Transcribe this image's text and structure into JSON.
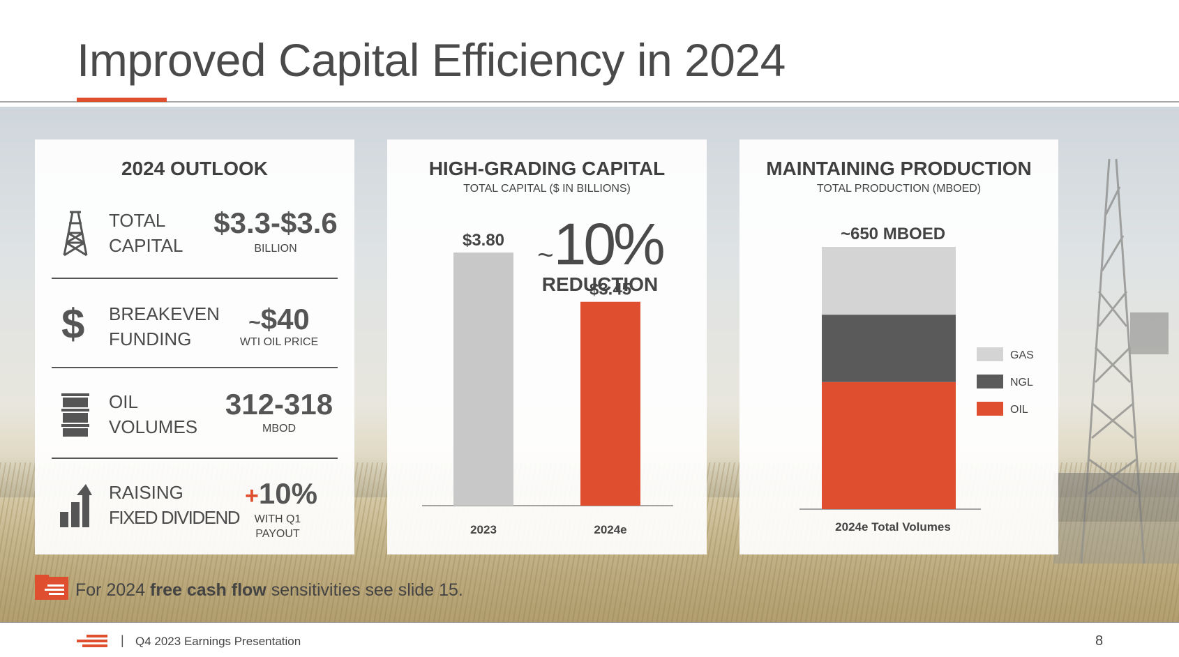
{
  "header": {
    "title": "Improved Capital Efficiency in 2024"
  },
  "outlook": {
    "heading": "2024 OUTLOOK",
    "rows": [
      {
        "label1": "TOTAL",
        "label2": "CAPITAL",
        "value": "$3.3-$3.6",
        "unit": "BILLION",
        "icon": "oil-derrick-icon"
      },
      {
        "label1": "BREAKEVEN",
        "label2": "FUNDING",
        "tilde": "~",
        "value": "$40",
        "unit": "WTI OIL PRICE",
        "icon": "dollar-icon"
      },
      {
        "label1": "OIL",
        "label2": "VOLUMES",
        "value": "312-318",
        "unit": "MBOD",
        "icon": "oil-barrel-icon"
      },
      {
        "label1": "RAISING",
        "label2": "FIXED DIVIDEND",
        "plus": "+",
        "value": "10%",
        "unit1": "WITH Q1",
        "unit2": "PAYOUT",
        "icon": "growth-bars-icon"
      }
    ]
  },
  "capital_chart": {
    "heading": "HIGH-GRADING CAPITAL",
    "subheading": "TOTAL CAPITAL ($ IN BILLIONS)",
    "callout_tilde": "~",
    "callout_value": "10%",
    "callout_label": "REDUCTION",
    "colors": {
      "2023": "#c8c8c8",
      "2024e": "#e04e30"
    }
  },
  "production_chart": {
    "heading": "MAINTAINING PRODUCTION",
    "subheading": "TOTAL PRODUCTION (MBOED)",
    "total_label": "~650 MBOED",
    "category_label": "2024e Total Volumes",
    "colors": {
      "GAS": "#d4d4d4",
      "NGL": "#5a5a5a",
      "OIL": "#e04e30"
    }
  },
  "chart_data": [
    {
      "type": "bar",
      "title": "HIGH-GRADING CAPITAL",
      "subtitle": "TOTAL CAPITAL ($ IN BILLIONS)",
      "categories": [
        "2023",
        "2024e"
      ],
      "values": [
        3.8,
        3.45
      ],
      "value_labels": [
        "$3.80",
        "$3.45"
      ],
      "ylim": [
        2.0,
        3.9
      ],
      "annotation": "~10% REDUCTION"
    },
    {
      "type": "bar",
      "stacked": true,
      "title": "MAINTAINING PRODUCTION",
      "subtitle": "TOTAL PRODUCTION (MBOED)",
      "categories": [
        "2024e Total Volumes"
      ],
      "series": [
        {
          "name": "OIL",
          "values": [
            315
          ]
        },
        {
          "name": "NGL",
          "values": [
            167
          ]
        },
        {
          "name": "GAS",
          "values": [
            168
          ]
        }
      ],
      "total": 650,
      "legend": [
        "GAS",
        "NGL",
        "OIL"
      ],
      "legend_position": "right"
    }
  ],
  "note": {
    "prefix": "For 2024 ",
    "bold": "free cash flow",
    "suffix": " sensitivities see slide 15."
  },
  "footer": {
    "separator": "|",
    "text": "Q4 2023 Earnings Presentation",
    "page": "8"
  }
}
